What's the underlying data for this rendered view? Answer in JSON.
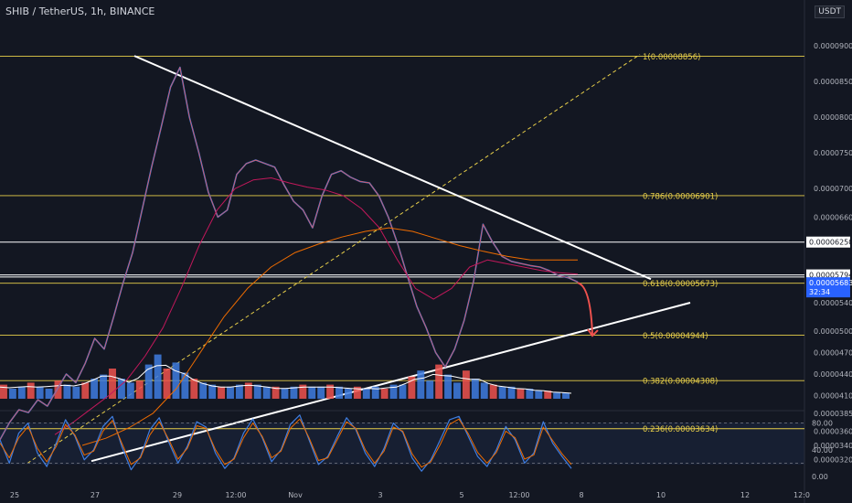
{
  "header": {
    "symbol_text": "SHIB / TetherUS, 1h, BINANCE",
    "unit": "USDT"
  },
  "chart_data": [
    {
      "type": "line",
      "title": "SHIB / TetherUS, 1h, BINANCE",
      "currency": "USDT",
      "x_ticks": [
        "25",
        "27",
        "29",
        "12:00",
        "Nov",
        "3",
        "5",
        "12:00",
        "8",
        "10",
        "12",
        "12:0"
      ],
      "y_ticks": [
        "0.00009000",
        "0.00008500",
        "0.00008000",
        "0.00007500",
        "0.00007000",
        "0.00006600",
        "0.00006250",
        "0.00005794",
        "0.00005683",
        "0.00005400",
        "0.00005000",
        "0.00004700",
        "0.00004400",
        "0.00004100",
        "0.00003850",
        "0.00003600",
        "0.00003400",
        "0.00003200"
      ],
      "price_labels": {
        "level": "0.00006250",
        "upper": "0.00005794",
        "last": "0.00005683",
        "countdown": "32:34"
      },
      "fib_levels": [
        {
          "label": "1(0.00008856)",
          "value": 8.856e-05
        },
        {
          "label": "0.786(0.00006901)",
          "value": 6.901e-05
        },
        {
          "label": "0.618(0.00005673)",
          "value": 5.673e-05
        },
        {
          "label": "0.5(0.00004944)",
          "value": 4.944e-05
        },
        {
          "label": "0.382(0.00004308)",
          "value": 4.308e-05
        },
        {
          "label": "0.236(0.00003634)",
          "value": 3.634e-05
        }
      ],
      "series": [
        {
          "values": [
            3.48e-05,
            3.72e-05,
            3.9e-05,
            3.86e-05,
            4.04e-05,
            3.95e-05,
            4.18e-05,
            4.4e-05,
            4.28e-05,
            4.55e-05,
            4.9e-05,
            4.75e-05,
            5.2e-05,
            5.68e-05,
            6.1e-05,
            6.7e-05,
            7.3e-05,
            7.85e-05,
            8.42e-05,
            8.7e-05,
            8e-05,
            7.5e-05,
            6.95e-05,
            6.6e-05,
            6.7e-05,
            7.2e-05,
            7.35e-05,
            7.4e-05,
            7.35e-05,
            7.3e-05,
            7.05e-05,
            6.82e-05,
            6.7e-05,
            6.45e-05,
            6.9e-05,
            7.2e-05,
            7.25e-05,
            7.16e-05,
            7.1e-05,
            7.08e-05,
            6.9e-05,
            6.6e-05,
            6.22e-05,
            5.78e-05,
            5.35e-05,
            5.05e-05,
            4.7e-05,
            4.5e-05,
            4.75e-05,
            5.15e-05,
            5.7e-05,
            6.5e-05,
            6.25e-05,
            6.05e-05,
            5.98e-05,
            5.95e-05,
            5.92e-05,
            5.9e-05,
            5.85e-05,
            5.78e-05,
            5.75e-05,
            5.69e-05
          ]
        },
        {
          "values": [
            3.55e-05,
            3.72e-05,
            3.91e-05,
            4.1e-05,
            4.32e-05,
            4.65e-05,
            5.05e-05,
            5.6e-05,
            6.2e-05,
            6.7e-05,
            7e-05,
            7.12e-05,
            7.15e-05,
            7.08e-05,
            7.02e-05,
            6.98e-05,
            6.9e-05,
            6.72e-05,
            6.45e-05,
            6e-05,
            5.6e-05,
            5.45e-05,
            5.6e-05,
            5.9e-05,
            6e-05,
            5.95e-05,
            5.9e-05,
            5.85e-05,
            5.82e-05,
            5.8e-05
          ]
        },
        {
          "values": [
            3.4e-05,
            3.5e-05,
            3.65e-05,
            3.85e-05,
            4.2e-05,
            4.7e-05,
            5.2e-05,
            5.6e-05,
            5.9e-05,
            6.1e-05,
            6.22e-05,
            6.32e-05,
            6.4e-05,
            6.45e-05,
            6.4e-05,
            6.3e-05,
            6.2e-05,
            6.12e-05,
            6.05e-05,
            6e-05,
            6e-05,
            6e-05
          ]
        }
      ],
      "projection": {
        "from": 5.68e-05,
        "to": 4.95e-05
      },
      "volume": {
        "values": [
          7,
          5,
          6,
          8,
          6,
          5,
          9,
          7,
          6,
          8,
          10,
          12,
          15,
          10,
          8,
          9,
          17,
          22,
          15,
          18,
          13,
          10,
          8,
          7,
          6,
          6,
          7,
          8,
          7,
          6,
          6,
          5,
          6,
          7,
          6,
          6,
          7,
          6,
          5,
          6,
          5,
          6,
          5,
          7,
          7,
          11,
          14,
          9,
          17,
          12,
          8,
          14,
          10,
          8,
          7,
          6,
          6,
          5,
          5,
          4,
          4,
          3,
          3
        ]
      },
      "oscillator": {
        "y_ticks": [
          "80.00",
          "40.00",
          "0.00"
        ],
        "ylim": [
          0,
          100
        ],
        "bands": [
          80,
          20
        ],
        "series": [
          {
            "values": [
              55,
              20,
              65,
              80,
              35,
              15,
              50,
              85,
              60,
              25,
              40,
              75,
              90,
              45,
              10,
              30,
              70,
              88,
              52,
              20,
              45,
              82,
              74,
              35,
              12,
              28,
              65,
              86,
              58,
              22,
              40,
              78,
              92,
              55,
              18,
              30,
              60,
              88,
              70,
              35,
              15,
              42,
              80,
              66,
              28,
              8,
              25,
              55,
              85,
              90,
              60,
              30,
              15,
              40,
              75,
              55,
              20,
              35,
              82,
              50,
              30,
              12
            ]
          },
          {
            "values": [
              50,
              28,
              58,
              75,
              42,
              22,
              45,
              78,
              62,
              32,
              38,
              68,
              84,
              50,
              18,
              28,
              62,
              82,
              56,
              26,
              42,
              76,
              72,
              40,
              18,
              26,
              58,
              80,
              60,
              28,
              38,
              72,
              86,
              58,
              24,
              28,
              55,
              82,
              72,
              40,
              20,
              38,
              74,
              68,
              34,
              14,
              22,
              48,
              78,
              86,
              64,
              36,
              20,
              36,
              68,
              58,
              26,
              32,
              74,
              54,
              34,
              18
            ]
          }
        ]
      }
    }
  ]
}
